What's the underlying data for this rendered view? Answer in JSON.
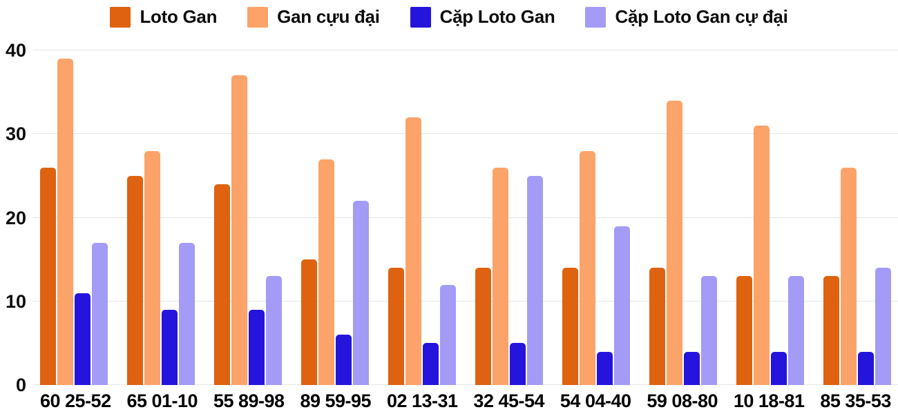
{
  "chart_data": {
    "type": "bar",
    "title": "",
    "xlabel": "",
    "ylabel": "",
    "ylim": [
      0,
      40
    ],
    "yticks": [
      0,
      10,
      20,
      30,
      40
    ],
    "grid": true,
    "legend_position": "top",
    "categories": [
      "60 25-52",
      "65 01-10",
      "55 89-98",
      "89 59-95",
      "02 13-31",
      "32 45-54",
      "54 04-40",
      "59 08-80",
      "10 18-81",
      "85 35-53"
    ],
    "series": [
      {
        "name": "Loto Gan",
        "color": "#de6210",
        "values": [
          26,
          25,
          24,
          15,
          14,
          14,
          14,
          14,
          13,
          13
        ]
      },
      {
        "name": "Gan cựu đại",
        "color": "#fca36a",
        "values": [
          39,
          28,
          37,
          27,
          32,
          26,
          28,
          34,
          31,
          26
        ]
      },
      {
        "name": "Cặp Loto Gan",
        "color": "#2414dc",
        "values": [
          11,
          9,
          9,
          6,
          5,
          5,
          4,
          4,
          4,
          4
        ]
      },
      {
        "name": "Cặp Loto Gan cự đại",
        "color": "#a39bf5",
        "values": [
          17,
          17,
          13,
          22,
          12,
          25,
          19,
          13,
          13,
          14
        ]
      }
    ]
  },
  "colors": {
    "background": "#ffffff",
    "gridline": "#e6e6e6",
    "text": "#0d0d0d"
  }
}
